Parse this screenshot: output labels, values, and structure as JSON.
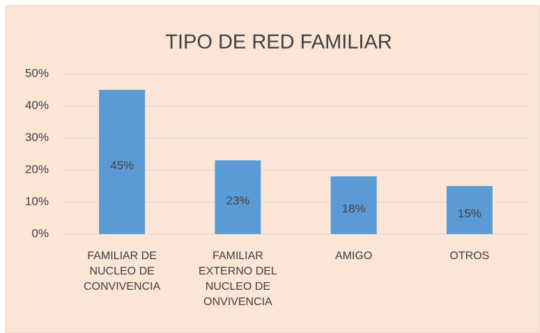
{
  "chart_data": {
    "type": "bar",
    "title": "TIPO DE RED FAMILIAR",
    "categories": [
      "FAMILIAR DE NUCLEO DE CONVIVENCIA",
      "FAMILIAR EXTERNO DEL NUCLEO DE ONVIVENCIA",
      "AMIGO",
      "OTROS"
    ],
    "values": [
      45,
      23,
      18,
      15
    ],
    "value_labels": [
      "45%",
      "23%",
      "18%",
      "15%"
    ],
    "color": "#5b9bd5",
    "ylim": [
      0,
      50
    ],
    "yticks": [
      {
        "value": 0,
        "label": "0%"
      },
      {
        "value": 10,
        "label": "10%"
      },
      {
        "value": 20,
        "label": "20%"
      },
      {
        "value": 30,
        "label": "30%"
      },
      {
        "value": 40,
        "label": "40%"
      },
      {
        "value": 50,
        "label": "50%"
      }
    ],
    "grid": true
  }
}
